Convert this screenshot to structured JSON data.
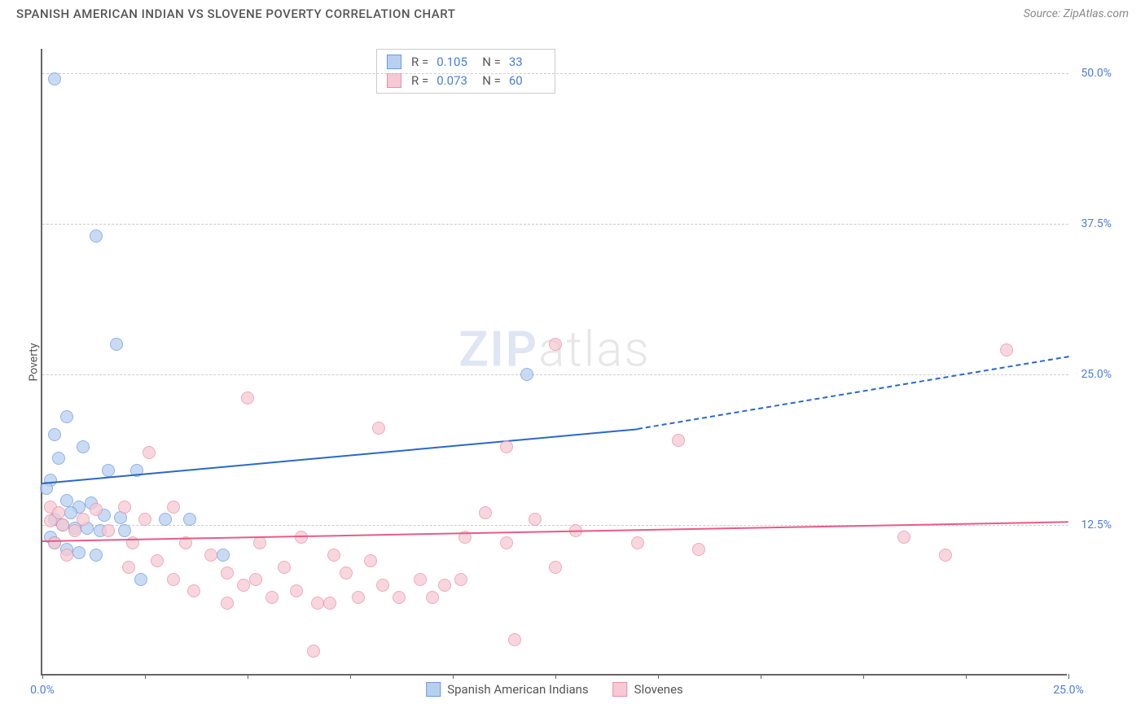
{
  "header": {
    "title": "SPANISH AMERICAN INDIAN VS SLOVENE POVERTY CORRELATION CHART",
    "source": "Source: ZipAtlas.com"
  },
  "chart": {
    "type": "scatter",
    "y_axis_label": "Poverty",
    "background_color": "#ffffff",
    "grid_color": "#cccccc",
    "axis_color": "#666666",
    "tick_label_color": "#4a7fd8",
    "xlim": [
      0,
      25
    ],
    "ylim": [
      0,
      52
    ],
    "y_ticks": [
      {
        "value": 12.5,
        "label": "12.5%"
      },
      {
        "value": 25.0,
        "label": "25.0%"
      },
      {
        "value": 37.5,
        "label": "37.5%"
      },
      {
        "value": 50.0,
        "label": "50.0%"
      }
    ],
    "x_ticks": [
      {
        "value": 0.0,
        "label": "0.0%"
      },
      {
        "value": 2.5,
        "label": ""
      },
      {
        "value": 5.0,
        "label": ""
      },
      {
        "value": 7.5,
        "label": ""
      },
      {
        "value": 10.0,
        "label": ""
      },
      {
        "value": 12.5,
        "label": ""
      },
      {
        "value": 15.0,
        "label": ""
      },
      {
        "value": 17.5,
        "label": ""
      },
      {
        "value": 20.0,
        "label": ""
      },
      {
        "value": 22.5,
        "label": ""
      },
      {
        "value": 25.0,
        "label": "25.0%"
      }
    ],
    "marker_radius": 8,
    "series": [
      {
        "id": "spanish_american_indians",
        "label": "Spanish American Indians",
        "fill_color": "#b8d0f0",
        "stroke_color": "#6a9ae0",
        "trend_color": "#2a68c8",
        "R": "0.105",
        "N": "33",
        "trend": {
          "x1": 0.0,
          "y1": 16.0,
          "x2_solid": 14.5,
          "y2_solid": 20.5,
          "x2_dash": 25.0,
          "y2_dash": 26.5
        },
        "points": [
          {
            "x": 0.3,
            "y": 49.5
          },
          {
            "x": 1.3,
            "y": 36.5
          },
          {
            "x": 1.8,
            "y": 27.5
          },
          {
            "x": 0.6,
            "y": 21.5
          },
          {
            "x": 0.3,
            "y": 20.0
          },
          {
            "x": 1.0,
            "y": 19.0
          },
          {
            "x": 0.4,
            "y": 18.0
          },
          {
            "x": 1.6,
            "y": 17.0
          },
          {
            "x": 2.3,
            "y": 17.0
          },
          {
            "x": 0.2,
            "y": 16.2
          },
          {
            "x": 0.1,
            "y": 15.5
          },
          {
            "x": 0.6,
            "y": 14.5
          },
          {
            "x": 1.2,
            "y": 14.3
          },
          {
            "x": 0.9,
            "y": 14.0
          },
          {
            "x": 0.7,
            "y": 13.5
          },
          {
            "x": 1.5,
            "y": 13.3
          },
          {
            "x": 1.9,
            "y": 13.1
          },
          {
            "x": 0.3,
            "y": 13.0
          },
          {
            "x": 0.5,
            "y": 12.5
          },
          {
            "x": 1.1,
            "y": 12.2
          },
          {
            "x": 0.8,
            "y": 12.2
          },
          {
            "x": 1.4,
            "y": 12.0
          },
          {
            "x": 2.0,
            "y": 12.0
          },
          {
            "x": 0.2,
            "y": 11.5
          },
          {
            "x": 0.3,
            "y": 11.0
          },
          {
            "x": 0.6,
            "y": 10.5
          },
          {
            "x": 0.9,
            "y": 10.2
          },
          {
            "x": 1.3,
            "y": 10.0
          },
          {
            "x": 3.0,
            "y": 13.0
          },
          {
            "x": 3.6,
            "y": 13.0
          },
          {
            "x": 4.4,
            "y": 10.0
          },
          {
            "x": 2.4,
            "y": 8.0
          },
          {
            "x": 11.8,
            "y": 25.0
          }
        ]
      },
      {
        "id": "slovenes",
        "label": "Slovenes",
        "fill_color": "#f6c9d4",
        "stroke_color": "#ea8fa8",
        "trend_color": "#e85b85",
        "R": "0.073",
        "N": "60",
        "trend": {
          "x1": 0.0,
          "y1": 11.2,
          "x2_solid": 25.0,
          "y2_solid": 12.8,
          "x2_dash": 25.0,
          "y2_dash": 12.8
        },
        "points": [
          {
            "x": 12.5,
            "y": 27.5
          },
          {
            "x": 5.0,
            "y": 23.0
          },
          {
            "x": 8.2,
            "y": 20.5
          },
          {
            "x": 11.3,
            "y": 19.0
          },
          {
            "x": 2.6,
            "y": 18.5
          },
          {
            "x": 15.5,
            "y": 19.5
          },
          {
            "x": 0.2,
            "y": 14.0
          },
          {
            "x": 0.4,
            "y": 13.5
          },
          {
            "x": 0.2,
            "y": 12.8
          },
          {
            "x": 0.5,
            "y": 12.5
          },
          {
            "x": 0.3,
            "y": 11.0
          },
          {
            "x": 0.8,
            "y": 12.0
          },
          {
            "x": 1.0,
            "y": 13.0
          },
          {
            "x": 1.3,
            "y": 13.8
          },
          {
            "x": 1.6,
            "y": 12.0
          },
          {
            "x": 2.0,
            "y": 14.0
          },
          {
            "x": 2.2,
            "y": 11.0
          },
          {
            "x": 2.5,
            "y": 13.0
          },
          {
            "x": 2.8,
            "y": 9.5
          },
          {
            "x": 2.1,
            "y": 9.0
          },
          {
            "x": 3.2,
            "y": 14.0
          },
          {
            "x": 3.5,
            "y": 11.0
          },
          {
            "x": 3.2,
            "y": 8.0
          },
          {
            "x": 3.7,
            "y": 7.0
          },
          {
            "x": 4.1,
            "y": 10.0
          },
          {
            "x": 4.5,
            "y": 8.5
          },
          {
            "x": 4.9,
            "y": 7.5
          },
          {
            "x": 4.5,
            "y": 6.0
          },
          {
            "x": 5.3,
            "y": 11.0
          },
          {
            "x": 5.2,
            "y": 8.0
          },
          {
            "x": 5.6,
            "y": 6.5
          },
          {
            "x": 5.9,
            "y": 9.0
          },
          {
            "x": 6.3,
            "y": 11.5
          },
          {
            "x": 6.2,
            "y": 7.0
          },
          {
            "x": 6.7,
            "y": 6.0
          },
          {
            "x": 6.6,
            "y": 2.0
          },
          {
            "x": 7.1,
            "y": 10.0
          },
          {
            "x": 7.4,
            "y": 8.5
          },
          {
            "x": 7.0,
            "y": 6.0
          },
          {
            "x": 7.7,
            "y": 6.5
          },
          {
            "x": 8.0,
            "y": 9.5
          },
          {
            "x": 8.3,
            "y": 7.5
          },
          {
            "x": 8.7,
            "y": 6.5
          },
          {
            "x": 9.2,
            "y": 8.0
          },
          {
            "x": 9.5,
            "y": 6.5
          },
          {
            "x": 9.8,
            "y": 7.5
          },
          {
            "x": 10.3,
            "y": 11.5
          },
          {
            "x": 10.2,
            "y": 8.0
          },
          {
            "x": 10.8,
            "y": 13.5
          },
          {
            "x": 11.3,
            "y": 11.0
          },
          {
            "x": 11.5,
            "y": 3.0
          },
          {
            "x": 12.0,
            "y": 13.0
          },
          {
            "x": 12.5,
            "y": 9.0
          },
          {
            "x": 13.0,
            "y": 12.0
          },
          {
            "x": 14.5,
            "y": 11.0
          },
          {
            "x": 16.0,
            "y": 10.5
          },
          {
            "x": 21.0,
            "y": 11.5
          },
          {
            "x": 22.0,
            "y": 10.0
          },
          {
            "x": 23.5,
            "y": 27.0
          },
          {
            "x": 0.6,
            "y": 10.0
          }
        ]
      }
    ]
  },
  "watermark": {
    "zip": "ZIP",
    "atlas": "atlas"
  }
}
